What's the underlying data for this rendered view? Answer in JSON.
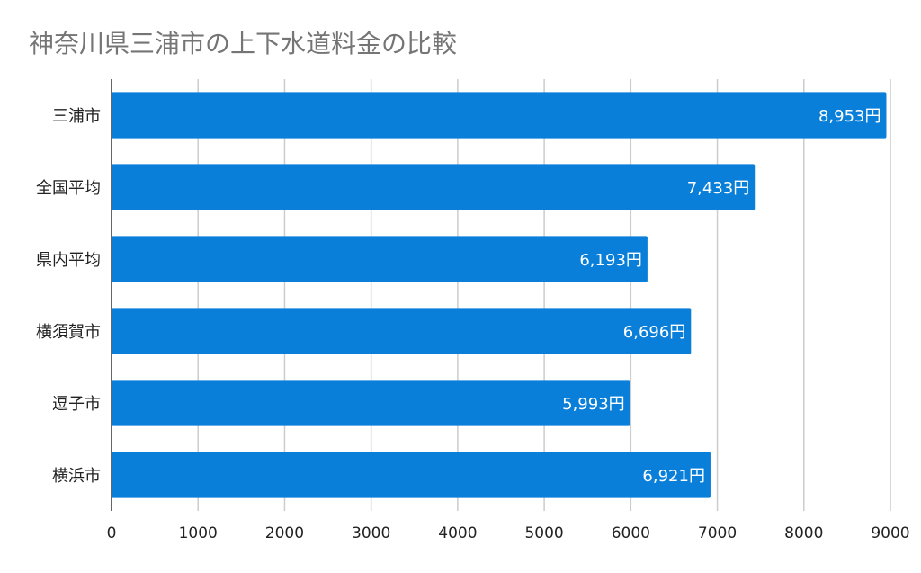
{
  "chart_data": {
    "type": "bar",
    "orientation": "horizontal",
    "title": "神奈川県三浦市の上下水道料金の比較",
    "xlabel": "",
    "ylabel": "",
    "categories": [
      "三浦市",
      "全国平均",
      "県内平均",
      "横須賀市",
      "逗子市",
      "横浜市"
    ],
    "values": [
      8953,
      7433,
      6193,
      6696,
      5993,
      6921
    ],
    "data_labels": [
      "8,953円",
      "7,433円",
      "6,193円",
      "6,696円",
      "5,993円",
      "6,921円"
    ],
    "xlim": [
      0,
      9000
    ],
    "ticks": [
      0,
      1000,
      2000,
      3000,
      4000,
      5000,
      6000,
      7000,
      8000,
      9000
    ],
    "tick_labels": [
      "0",
      "1000",
      "2000",
      "3000",
      "4000",
      "5000",
      "6000",
      "7000",
      "8000",
      "9000"
    ],
    "grid": true,
    "legend": "none",
    "colors": {
      "bar": "#0a7fd9",
      "grid": "#cccccc",
      "axis": "#333333",
      "title": "#757575",
      "label": "#222222",
      "data_label": "#ffffff"
    }
  }
}
